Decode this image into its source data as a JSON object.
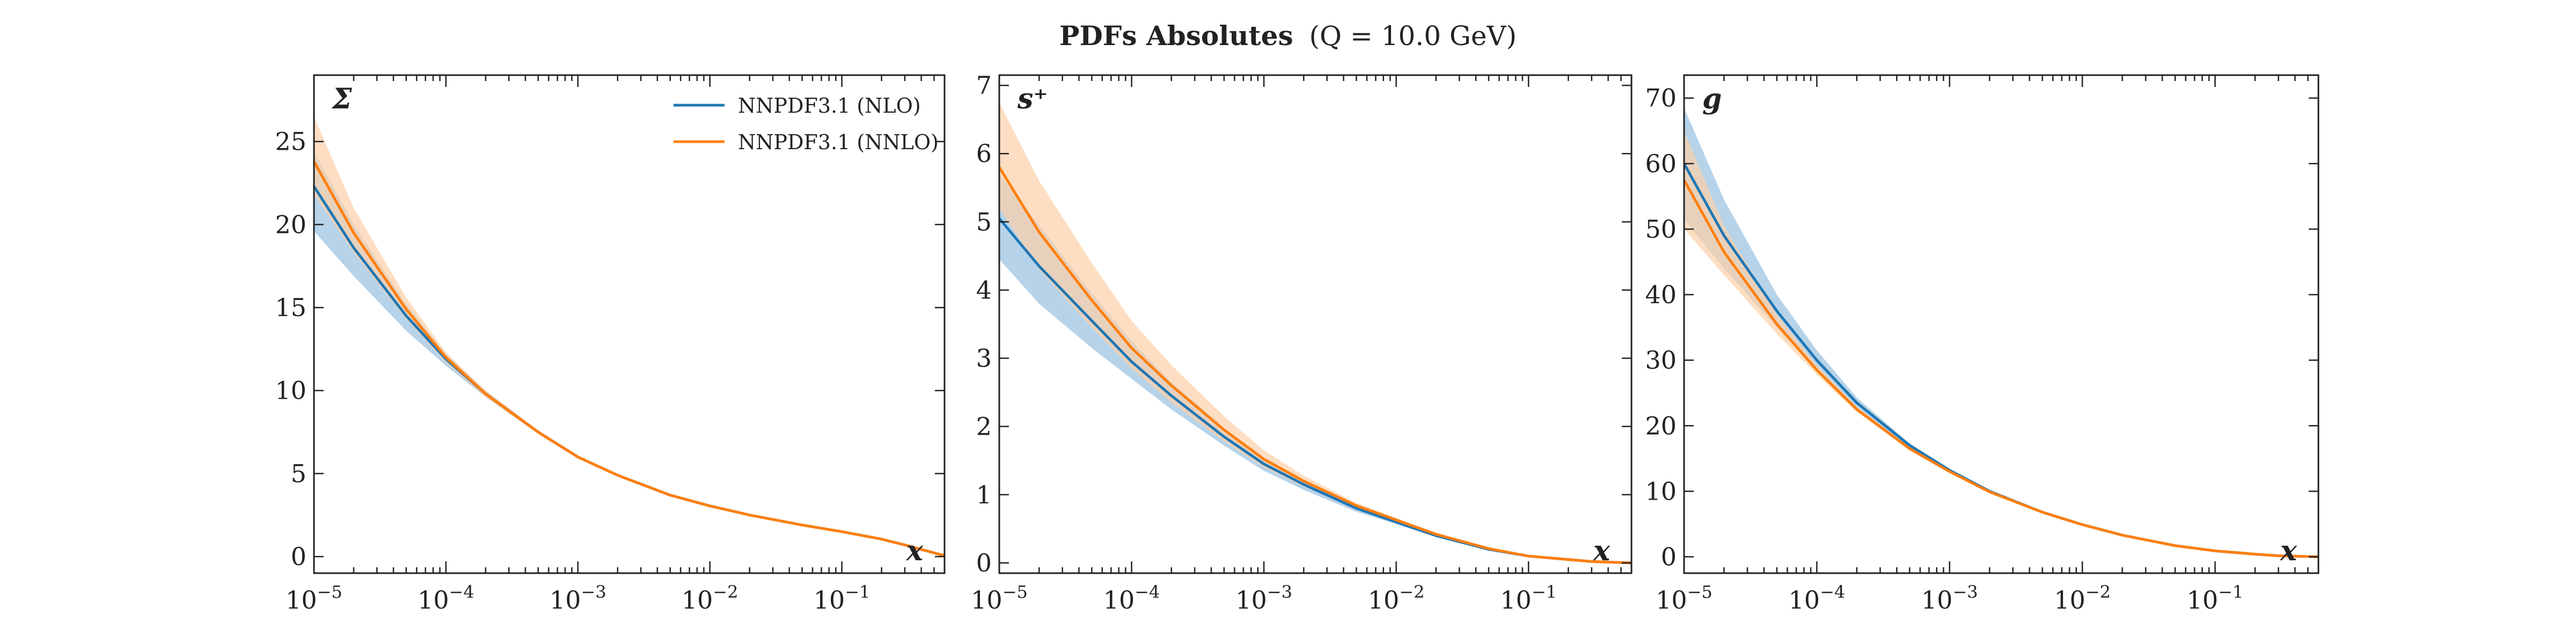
{
  "figure": {
    "title_bold": "PDFs Absolutes",
    "title_rest": "(Q = 10.0 GeV)",
    "legend": [
      "NNPDF3.1 (NLO)",
      "NNPDF3.1 (NNLO)"
    ],
    "colors": {
      "nlo": "#1f77b4",
      "nnlo": "#ff7f0e",
      "nlo_band": "#a9cbe6",
      "nnlo_band": "#fdd0a8"
    }
  },
  "chart_data": [
    {
      "type": "line",
      "panel_label": "Σ",
      "xlabel": "x",
      "xscale": "log",
      "xlim": [
        1e-05,
        0.6
      ],
      "ylim": [
        -1,
        29
      ],
      "x_ticks": [
        {
          "base": "10",
          "exp": "−5"
        },
        {
          "base": "10",
          "exp": "−4"
        },
        {
          "base": "10",
          "exp": "−3"
        },
        {
          "base": "10",
          "exp": "−2"
        },
        {
          "base": "10",
          "exp": "−1"
        }
      ],
      "y_ticks": [
        0,
        5,
        10,
        15,
        20,
        25
      ],
      "legend_position": "top-right",
      "x": [
        1e-05,
        2e-05,
        5e-05,
        0.0001,
        0.0002,
        0.0005,
        0.001,
        0.002,
        0.005,
        0.01,
        0.02,
        0.05,
        0.1,
        0.2,
        0.3,
        0.6
      ],
      "series": [
        {
          "name": "NNPDF3.1 (NLO)",
          "color": "#1f77b4",
          "central": [
            22.3,
            18.6,
            14.5,
            11.9,
            9.8,
            7.5,
            6.0,
            4.9,
            3.7,
            3.05,
            2.5,
            1.9,
            1.5,
            1.05,
            0.7,
            0.05
          ],
          "upper": [
            24.4,
            20.0,
            15.2,
            12.2,
            10.0,
            7.6,
            6.05,
            4.95,
            3.75,
            3.1,
            2.55,
            1.95,
            1.55,
            1.1,
            0.75,
            0.08
          ],
          "lower": [
            19.6,
            16.9,
            13.6,
            11.5,
            9.6,
            7.4,
            5.95,
            4.85,
            3.65,
            3.0,
            2.45,
            1.85,
            1.45,
            1.0,
            0.65,
            0.02
          ]
        },
        {
          "name": "NNPDF3.1 (NNLO)",
          "color": "#ff7f0e",
          "central": [
            23.8,
            19.5,
            14.9,
            12.0,
            9.8,
            7.5,
            6.0,
            4.9,
            3.7,
            3.05,
            2.5,
            1.9,
            1.5,
            1.05,
            0.7,
            0.05
          ],
          "upper": [
            26.5,
            21.0,
            15.6,
            12.3,
            10.0,
            7.6,
            6.05,
            4.95,
            3.75,
            3.1,
            2.55,
            1.95,
            1.55,
            1.1,
            0.75,
            0.08
          ],
          "lower": [
            21.8,
            18.3,
            14.3,
            11.7,
            9.6,
            7.4,
            5.95,
            4.85,
            3.65,
            3.0,
            2.45,
            1.85,
            1.45,
            1.0,
            0.65,
            0.02
          ]
        }
      ]
    },
    {
      "type": "line",
      "panel_label": "s⁺",
      "xlabel": "x",
      "xscale": "log",
      "xlim": [
        1e-05,
        0.6
      ],
      "ylim": [
        -0.15,
        7.15
      ],
      "x_ticks": [
        {
          "base": "10",
          "exp": "−5"
        },
        {
          "base": "10",
          "exp": "−4"
        },
        {
          "base": "10",
          "exp": "−3"
        },
        {
          "base": "10",
          "exp": "−2"
        },
        {
          "base": "10",
          "exp": "−1"
        }
      ],
      "y_ticks": [
        0,
        1,
        2,
        3,
        4,
        5,
        6,
        7
      ],
      "x": [
        1e-05,
        2e-05,
        5e-05,
        0.0001,
        0.0002,
        0.0005,
        0.001,
        0.002,
        0.005,
        0.01,
        0.02,
        0.05,
        0.1,
        0.2,
        0.3,
        0.6
      ],
      "series": [
        {
          "name": "NNPDF3.1 (NLO)",
          "color": "#1f77b4",
          "central": [
            5.05,
            4.35,
            3.55,
            2.95,
            2.45,
            1.85,
            1.45,
            1.15,
            0.8,
            0.6,
            0.4,
            0.2,
            0.1,
            0.05,
            0.02,
            0.0
          ],
          "upper": [
            5.7,
            4.95,
            3.95,
            3.25,
            2.65,
            1.98,
            1.55,
            1.22,
            0.85,
            0.63,
            0.42,
            0.21,
            0.11,
            0.06,
            0.03,
            0.01
          ],
          "lower": [
            4.45,
            3.8,
            3.15,
            2.7,
            2.25,
            1.72,
            1.35,
            1.07,
            0.75,
            0.57,
            0.38,
            0.19,
            0.09,
            0.04,
            0.01,
            0.0
          ]
        },
        {
          "name": "NNPDF3.1 (NNLO)",
          "color": "#ff7f0e",
          "central": [
            5.8,
            4.85,
            3.85,
            3.15,
            2.6,
            1.95,
            1.52,
            1.2,
            0.84,
            0.63,
            0.42,
            0.21,
            0.1,
            0.05,
            0.02,
            0.0
          ],
          "upper": [
            6.75,
            5.6,
            4.4,
            3.55,
            2.9,
            2.15,
            1.65,
            1.28,
            0.88,
            0.66,
            0.44,
            0.22,
            0.11,
            0.06,
            0.03,
            0.01
          ],
          "lower": [
            5.2,
            4.3,
            3.45,
            2.85,
            2.35,
            1.78,
            1.4,
            1.12,
            0.8,
            0.6,
            0.4,
            0.2,
            0.09,
            0.04,
            0.01,
            0.0
          ]
        }
      ]
    },
    {
      "type": "line",
      "panel_label": "g",
      "xlabel": "x",
      "xscale": "log",
      "xlim": [
        1e-05,
        0.6
      ],
      "ylim": [
        -2.5,
        73.5
      ],
      "x_ticks": [
        {
          "base": "10",
          "exp": "−5"
        },
        {
          "base": "10",
          "exp": "−4"
        },
        {
          "base": "10",
          "exp": "−3"
        },
        {
          "base": "10",
          "exp": "−2"
        },
        {
          "base": "10",
          "exp": "−1"
        }
      ],
      "y_ticks": [
        0,
        10,
        20,
        30,
        40,
        50,
        60,
        70
      ],
      "x": [
        1e-05,
        2e-05,
        5e-05,
        0.0001,
        0.0002,
        0.0005,
        0.001,
        0.002,
        0.005,
        0.01,
        0.02,
        0.05,
        0.1,
        0.2,
        0.3,
        0.6
      ],
      "series": [
        {
          "name": "NNPDF3.1 (NLO)",
          "color": "#1f77b4",
          "central": [
            60.0,
            49.0,
            37.5,
            30.0,
            23.5,
            17.0,
            13.2,
            10.0,
            6.8,
            4.9,
            3.3,
            1.7,
            0.9,
            0.4,
            0.15,
            0.0
          ],
          "upper": [
            68.5,
            54.5,
            40.0,
            31.5,
            24.3,
            17.3,
            13.4,
            10.1,
            6.85,
            4.95,
            3.35,
            1.75,
            0.95,
            0.45,
            0.2,
            0.02
          ],
          "lower": [
            51.5,
            44.0,
            35.0,
            28.5,
            22.8,
            16.7,
            13.0,
            9.9,
            6.75,
            4.85,
            3.25,
            1.65,
            0.85,
            0.35,
            0.1,
            0.0
          ]
        },
        {
          "name": "NNPDF3.1 (NNLO)",
          "color": "#ff7f0e",
          "central": [
            57.5,
            46.5,
            35.5,
            28.5,
            22.5,
            16.5,
            13.0,
            9.9,
            6.8,
            4.9,
            3.3,
            1.7,
            0.9,
            0.4,
            0.15,
            0.0
          ],
          "upper": [
            65.0,
            50.5,
            37.0,
            29.2,
            22.9,
            16.7,
            13.1,
            10.0,
            6.85,
            4.95,
            3.35,
            1.75,
            0.95,
            0.45,
            0.2,
            0.02
          ],
          "lower": [
            50.0,
            43.0,
            34.0,
            27.8,
            22.1,
            16.3,
            12.9,
            9.8,
            6.75,
            4.85,
            3.25,
            1.65,
            0.85,
            0.35,
            0.1,
            0.0
          ]
        }
      ]
    }
  ]
}
